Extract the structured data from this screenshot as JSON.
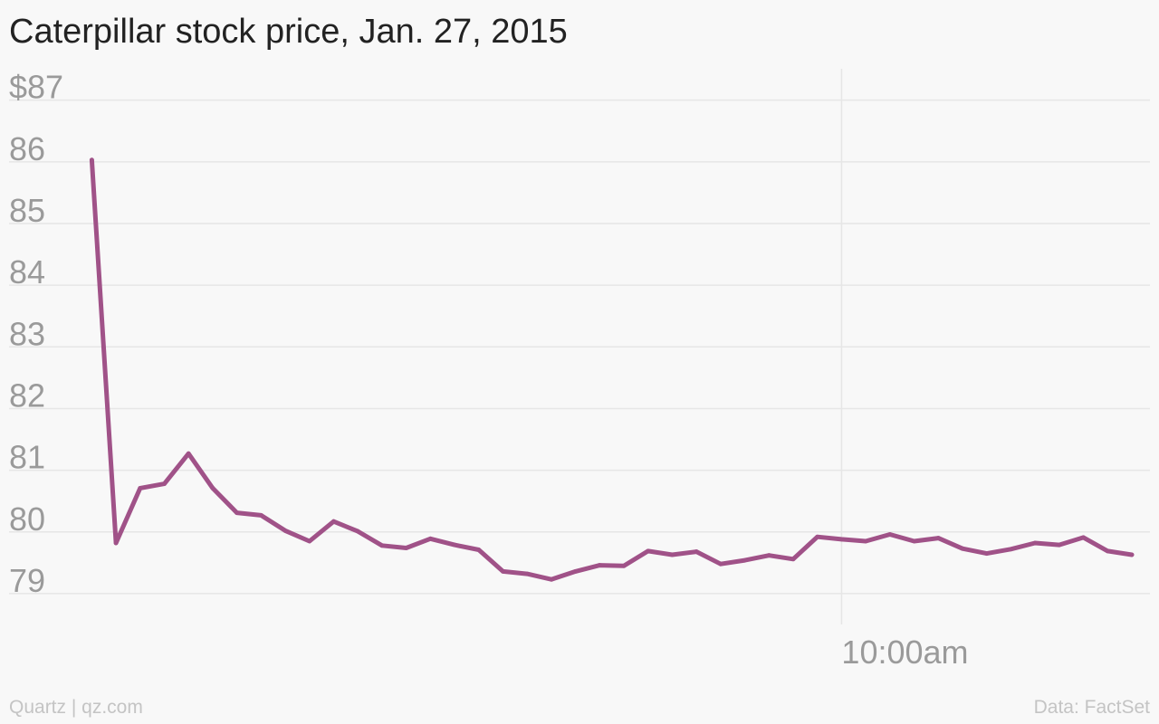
{
  "chart_data": {
    "type": "line",
    "title": "Caterpillar stock price, Jan. 27, 2015",
    "xlabel": "",
    "ylabel": "",
    "y_tick_labels": [
      "79",
      "80",
      "81",
      "82",
      "83",
      "84",
      "85",
      "86",
      "$87"
    ],
    "y_ticks": [
      79,
      80,
      81,
      82,
      83,
      84,
      85,
      86,
      87
    ],
    "ylim": [
      78.5,
      87.45
    ],
    "x_tick_labels": [
      "10:00am"
    ],
    "x_ticks": [
      31
    ],
    "xlim": [
      -0.5,
      43.75
    ],
    "grid": true,
    "series": [
      {
        "color": "#a05288",
        "values": [
          86.03,
          79.82,
          80.71,
          80.78,
          81.27,
          80.71,
          80.31,
          80.27,
          80.02,
          79.85,
          80.17,
          80.01,
          79.78,
          79.74,
          79.89,
          79.79,
          79.71,
          79.36,
          79.32,
          79.23,
          79.36,
          79.46,
          79.45,
          79.69,
          79.63,
          79.68,
          79.48,
          79.54,
          79.62,
          79.56,
          79.92,
          79.88,
          79.85,
          79.96,
          79.85,
          79.9,
          79.73,
          79.65,
          79.72,
          79.82,
          79.79,
          79.91,
          79.69,
          79.63
        ]
      }
    ]
  },
  "footer": {
    "source_left": "Quartz | qz.com",
    "source_right": "Data: FactSet"
  }
}
